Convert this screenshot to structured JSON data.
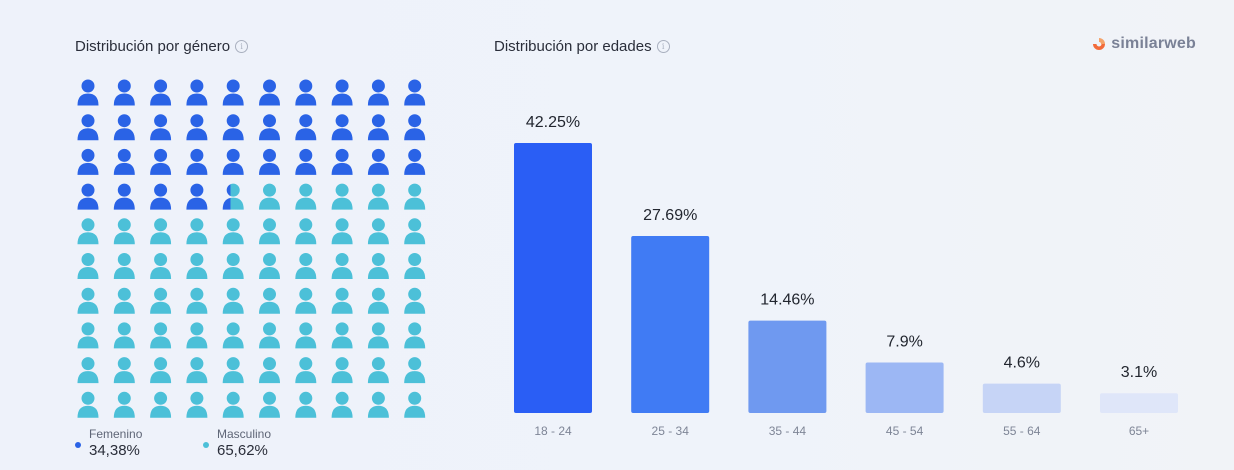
{
  "gender": {
    "title": "Distribución por género",
    "info_icon": "info-icon",
    "female": {
      "label": "Femenino",
      "value": "34,38%",
      "share": 0.3438,
      "color": "#2a63e6"
    },
    "male": {
      "label": "Masculino",
      "value": "65,62%",
      "share": 0.6562,
      "color": "#4cc0d8"
    }
  },
  "brand": {
    "name": "similarweb",
    "icon": "similarweb-logo-icon"
  },
  "age": {
    "title": "Distribución por edades",
    "info_icon": "info-icon"
  },
  "chart_data": {
    "type": "bar",
    "title": "Distribución por edades",
    "categories": [
      "18 - 24",
      "25 - 34",
      "35 - 44",
      "45 - 54",
      "55 - 64",
      "65+"
    ],
    "values": [
      42.25,
      27.69,
      14.46,
      7.9,
      4.6,
      3.1
    ],
    "value_labels": [
      "42.25%",
      "27.69%",
      "14.46%",
      "7.9%",
      "4.6%",
      "3.1%"
    ],
    "colors": [
      "#2a5ef5",
      "#407bf4",
      "#6f99f0",
      "#9cb7f4",
      "#c6d4f6",
      "#dfe6f9"
    ],
    "ylim": [
      0,
      42.25
    ],
    "grid": false,
    "legend": "none"
  }
}
